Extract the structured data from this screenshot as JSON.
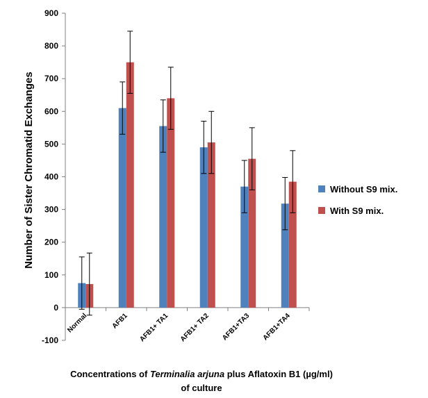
{
  "chart_data": {
    "type": "bar",
    "categories": [
      "Normal",
      "AFB1",
      "AFB1+ TA1",
      "AFB1+ TA2",
      "AFB1+TA3",
      "AFB1+TA4"
    ],
    "series": [
      {
        "name": "Without S9 mix.",
        "color": "#4f81bd",
        "values": [
          75,
          610,
          555,
          490,
          370,
          318
        ],
        "errors": [
          80,
          80,
          80,
          80,
          80,
          80
        ]
      },
      {
        "name": "With S9 mix.",
        "color": "#c0504d",
        "values": [
          72,
          750,
          640,
          505,
          455,
          385
        ],
        "errors": [
          95,
          95,
          95,
          95,
          95,
          95
        ]
      }
    ],
    "ylabel": "Number of Sister Chromatid Exchanges",
    "xlabel": {
      "line1_before": "Concentrations of ",
      "line1_italic": "Terminalia arjuna",
      "line1_after": " plus Aflatoxin B1 (µg/ml)",
      "line2": "of culture"
    },
    "ylim": [
      -100,
      900
    ],
    "yticks": [
      -100,
      0,
      100,
      200,
      300,
      400,
      500,
      600,
      700,
      800,
      900
    ],
    "grid": false,
    "legend_position": "right"
  }
}
